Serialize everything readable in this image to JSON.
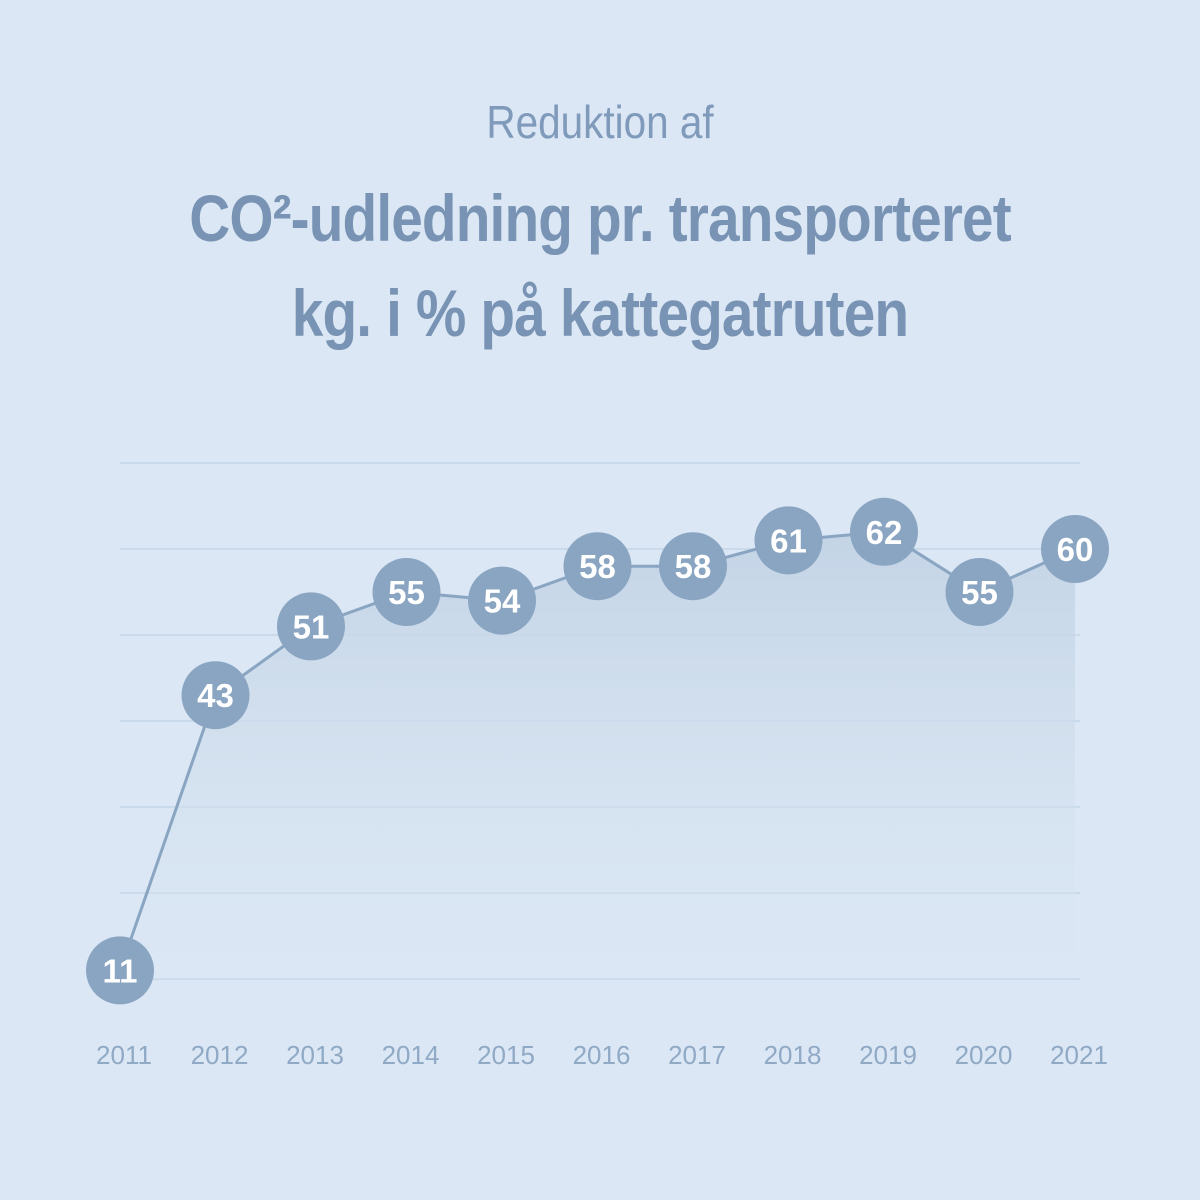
{
  "subtitle": "Reduktion af",
  "title_line1": "CO²-udledning pr. transporteret",
  "title_line2": "kg. i % på kattegatruten",
  "colors": {
    "background": "#dbe7f4",
    "text": "#7893b3",
    "marker": "#8aa5c2",
    "grid": "#c3d5e8",
    "line": "#8aa5c2",
    "area": "#c5d5e6"
  },
  "chart_data": {
    "type": "line",
    "title": "CO²-udledning pr. transporteret kg. i % på kattegatruten",
    "categories": [
      "2011",
      "2012",
      "2013",
      "2014",
      "2015",
      "2016",
      "2017",
      "2018",
      "2019",
      "2020",
      "2021"
    ],
    "values": [
      11,
      43,
      51,
      55,
      54,
      58,
      58,
      61,
      62,
      55,
      60
    ],
    "ylim": [
      10,
      70
    ],
    "grid": true,
    "area_fill": true,
    "data_labels": true
  }
}
